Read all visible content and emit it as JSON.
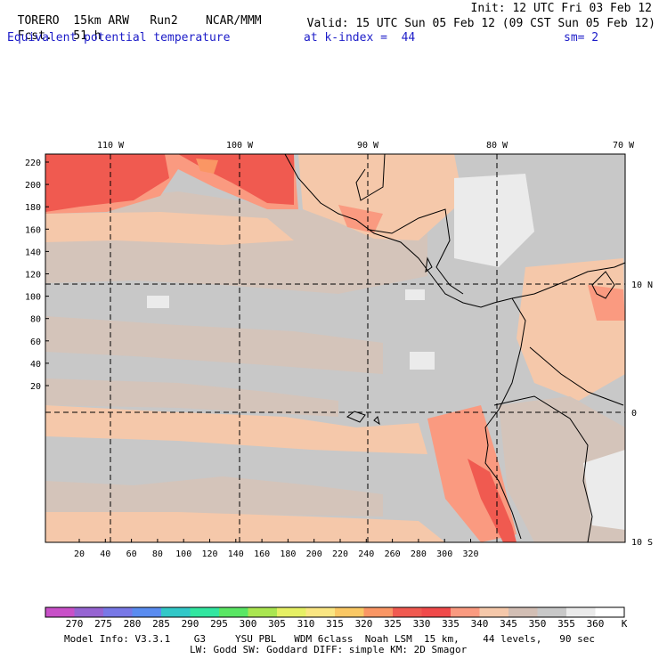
{
  "header": {
    "model": "TORERO",
    "resolution": "15km ARW",
    "run": "Run2",
    "org": "NCAR/MMM",
    "init": "Init: 12 UTC Fri 03 Feb 12",
    "fcst_label": "Fcst.",
    "fcst_value": "51 h",
    "valid": "Valid: 15 UTC Sun 05 Feb 12 (09 CST Sun 05 Feb 12)",
    "field": "Equivalent potential temperature",
    "level": "at k-index =  44",
    "smoothing": "sm= 2"
  },
  "map": {
    "top_longitude_labels": [
      "110 W",
      "100 W",
      "90 W",
      "80 W",
      "70 W"
    ],
    "right_latitude_labels": [
      "10 N",
      "0",
      "10 S"
    ],
    "y_tick_labels": [
      "220",
      "200",
      "180",
      "160",
      "140",
      "120",
      "100",
      "80",
      "60",
      "40",
      "20"
    ],
    "x_tick_labels": [
      "20",
      "40",
      "60",
      "80",
      "100",
      "120",
      "140",
      "160",
      "180",
      "200",
      "220",
      "240",
      "260",
      "280",
      "300",
      "320"
    ]
  },
  "colorbar": {
    "labels": [
      "270",
      "275",
      "280",
      "285",
      "290",
      "295",
      "300",
      "305",
      "310",
      "315",
      "320",
      "325",
      "330",
      "335",
      "340",
      "345",
      "350",
      "355",
      "360"
    ],
    "unit": "K",
    "colors": [
      "#c850c8",
      "#9664d2",
      "#7878e6",
      "#5a8cf0",
      "#32c8c8",
      "#32e6a0",
      "#5ae664",
      "#aae650",
      "#e6f064",
      "#fae682",
      "#fac864",
      "#fa9664",
      "#f05a50",
      "#f04a4a",
      "#fa9a80",
      "#f5c8aa",
      "#d2beb4",
      "#c8c8c8",
      "#ebebeb",
      "#ffffff"
    ]
  },
  "footer": {
    "line1": "Model Info: V3.3.1    G3     YSU PBL   WDM 6class  Noah LSM  15 km,    44 levels,   90 sec",
    "line2": "LW: Godd SW: Goddard DIFF: simple KM: 2D Smagor"
  }
}
